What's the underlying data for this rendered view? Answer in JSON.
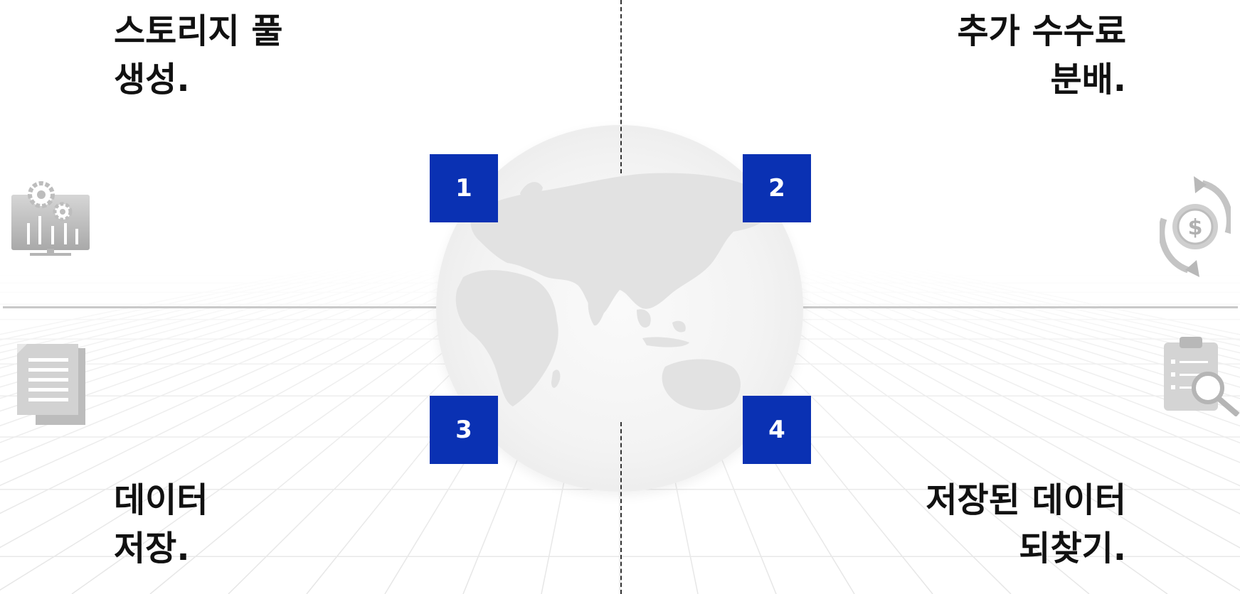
{
  "accent_color": "#0a31b3",
  "steps": [
    {
      "number": "1",
      "line1": "스토리지 풀",
      "line2": "생성.",
      "icon": "settings-monitor-icon"
    },
    {
      "number": "2",
      "line1": "추가 수수료",
      "line2": "분배.",
      "icon": "dollar-cycle-icon"
    },
    {
      "number": "3",
      "line1": "데이터",
      "line2": "저장.",
      "icon": "document-stack-icon"
    },
    {
      "number": "4",
      "line1": "저장된 데이터",
      "line2": "되찾기.",
      "icon": "clipboard-search-icon"
    }
  ]
}
